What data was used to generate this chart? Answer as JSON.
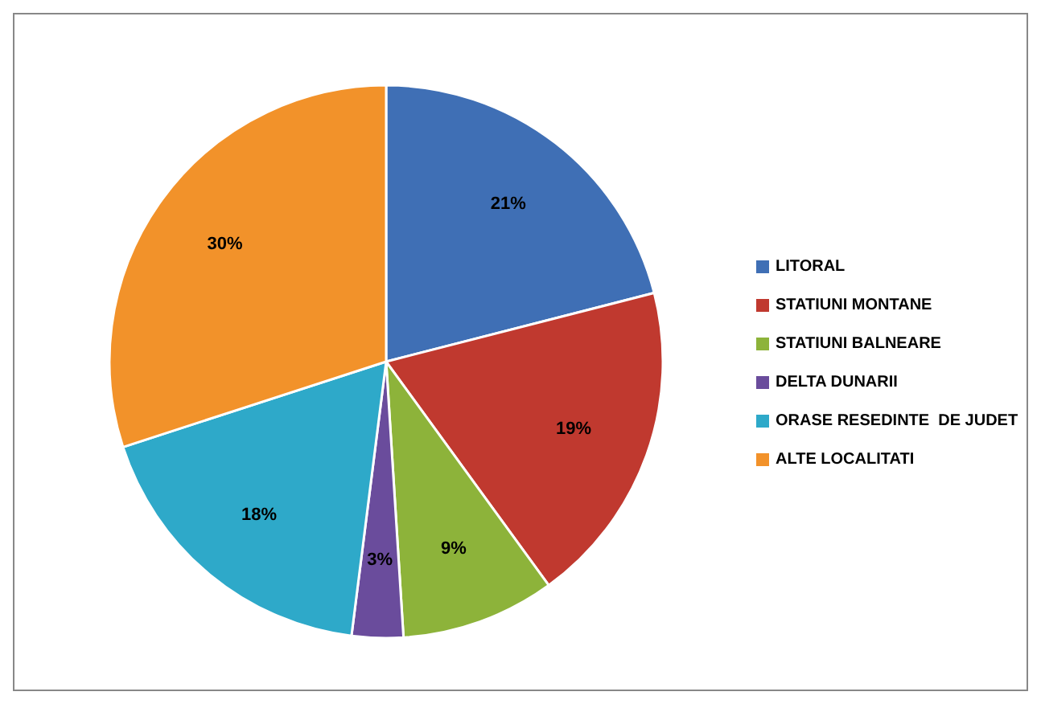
{
  "chart_data": {
    "type": "pie",
    "categories": [
      "LITORAL",
      "STATIUNI MONTANE",
      "STATIUNI BALNEARE",
      "DELTA DUNARII",
      "ORASE RESEDINTE  DE JUDET",
      "ALTE LOCALITATI"
    ],
    "values": [
      21,
      19,
      9,
      3,
      18,
      30
    ],
    "colors": [
      "#3f6fb5",
      "#c0392f",
      "#8db33a",
      "#6a4c9c",
      "#2ea9c9",
      "#f2922a"
    ],
    "value_labels": [
      "21%",
      "19%",
      "9%",
      "3%",
      "18%",
      "30%"
    ],
    "legend": "right"
  }
}
